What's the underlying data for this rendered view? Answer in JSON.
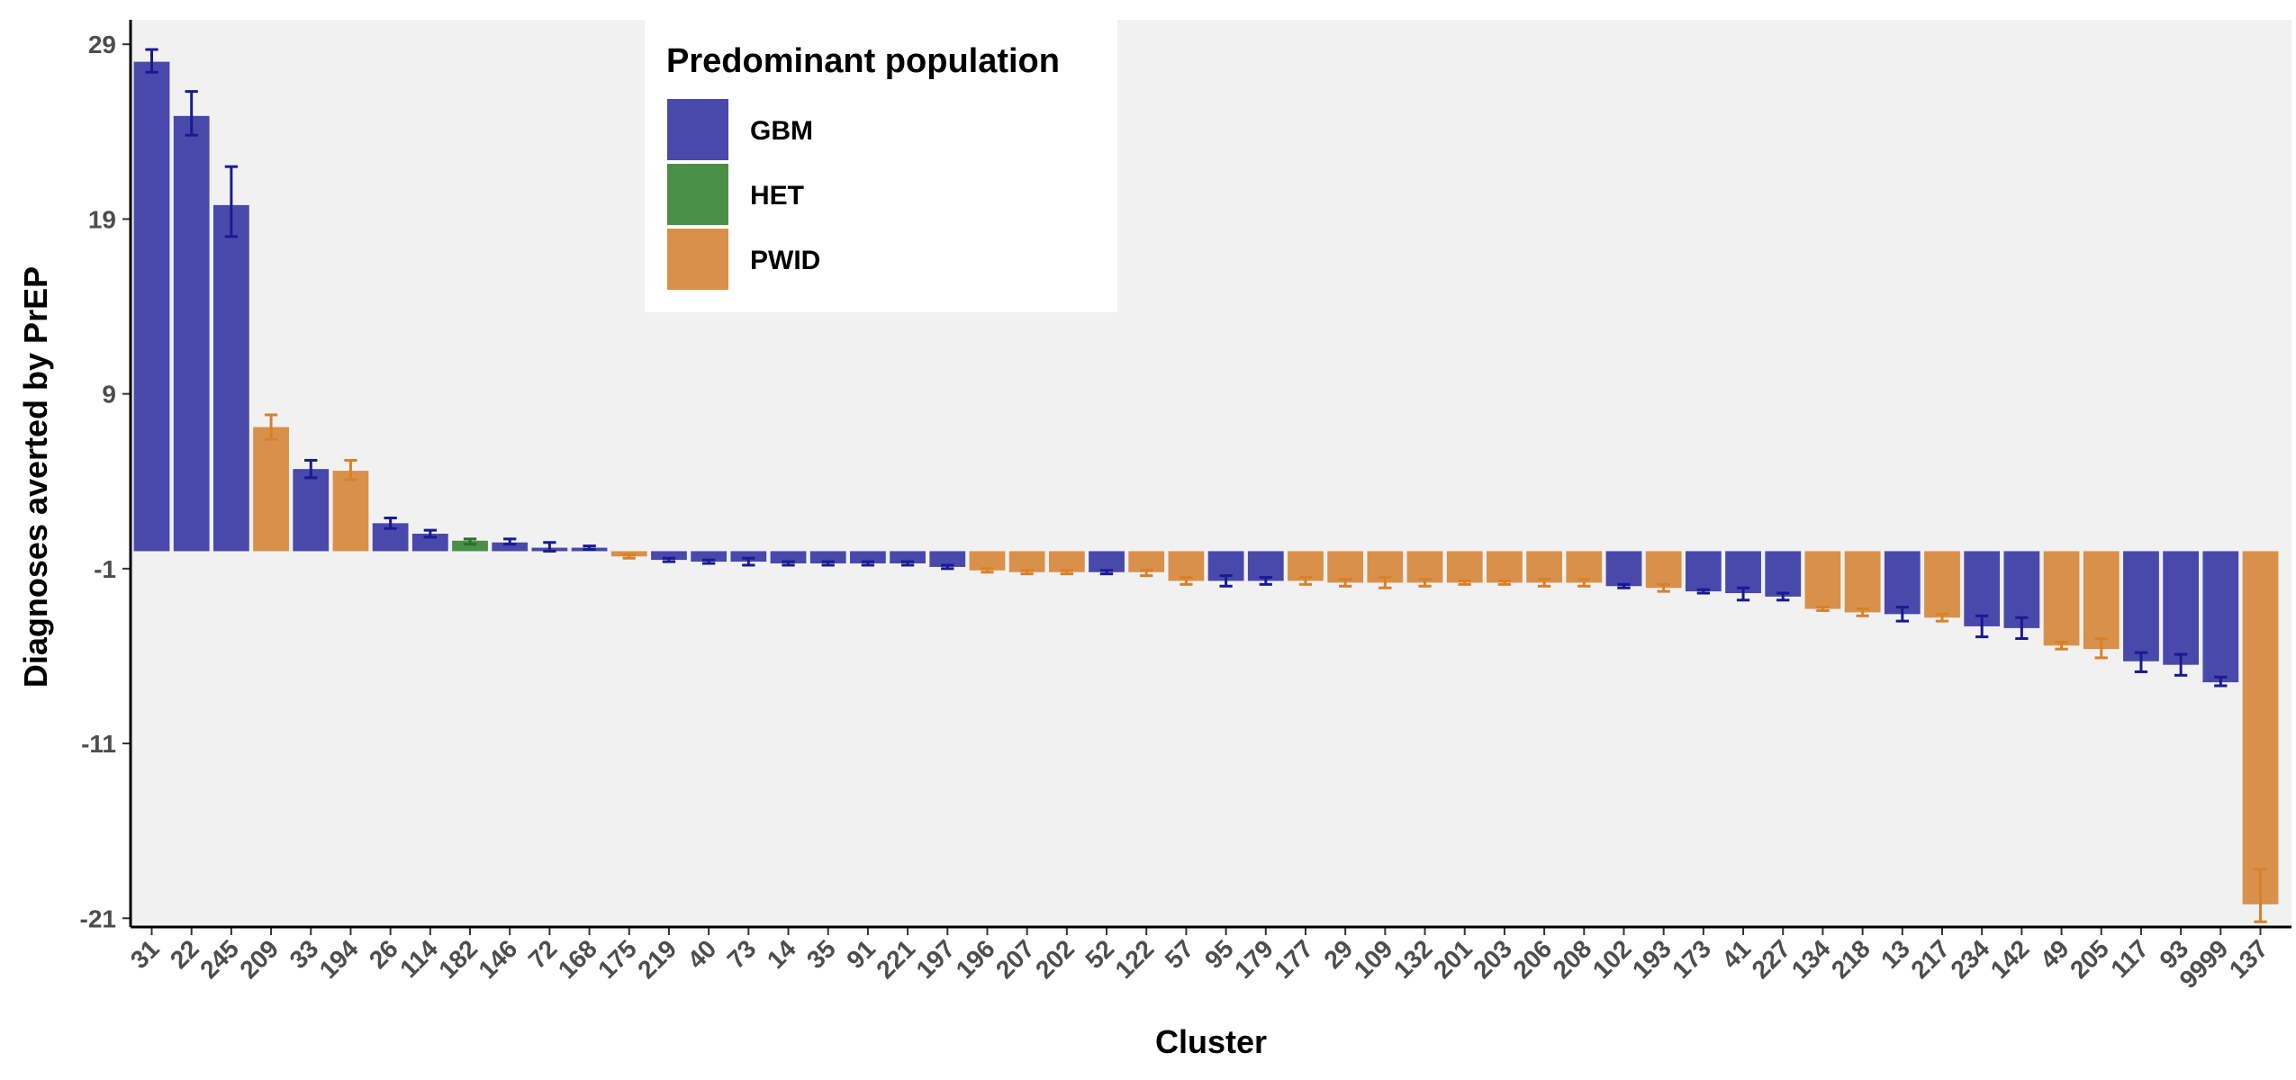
{
  "chart_data": {
    "type": "bar",
    "xlabel": "Cluster",
    "ylabel": "Diagnoses averted by PrEP",
    "ylim": [
      -21.5,
      30.4
    ],
    "yticks": [
      29,
      19,
      9,
      -1,
      -11,
      -21
    ],
    "grid": false,
    "legend": {
      "title": "Predominant population",
      "placement": "top-center",
      "entries": [
        "GBM",
        "HET",
        "PWID"
      ]
    },
    "colors": {
      "GBM": "#4949ab",
      "HET": "#4a8f47",
      "PWID": "#d9904a"
    },
    "error_colors": {
      "GBM": "#1a1a94",
      "HET": "#2e6e2e",
      "PWID": "#d9802a"
    },
    "categories": [
      "31",
      "22",
      "245",
      "209",
      "33",
      "194",
      "26",
      "114",
      "182",
      "146",
      "72",
      "168",
      "175",
      "219",
      "40",
      "73",
      "14",
      "35",
      "91",
      "221",
      "197",
      "196",
      "207",
      "202",
      "52",
      "122",
      "57",
      "95",
      "179",
      "177",
      "29",
      "109",
      "132",
      "201",
      "203",
      "206",
      "208",
      "102",
      "193",
      "173",
      "41",
      "227",
      "134",
      "218",
      "13",
      "217",
      "234",
      "142",
      "49",
      "205",
      "117",
      "93",
      "9999",
      "137"
    ],
    "groups": [
      "GBM",
      "GBM",
      "GBM",
      "PWID",
      "GBM",
      "PWID",
      "GBM",
      "GBM",
      "HET",
      "GBM",
      "GBM",
      "GBM",
      "PWID",
      "GBM",
      "GBM",
      "GBM",
      "GBM",
      "GBM",
      "GBM",
      "GBM",
      "GBM",
      "PWID",
      "PWID",
      "PWID",
      "GBM",
      "PWID",
      "PWID",
      "GBM",
      "GBM",
      "PWID",
      "PWID",
      "PWID",
      "PWID",
      "PWID",
      "PWID",
      "PWID",
      "PWID",
      "GBM",
      "PWID",
      "GBM",
      "GBM",
      "GBM",
      "PWID",
      "PWID",
      "GBM",
      "PWID",
      "GBM",
      "GBM",
      "PWID",
      "PWID",
      "GBM",
      "GBM",
      "GBM",
      "PWID"
    ],
    "values": [
      28.0,
      24.9,
      19.8,
      7.1,
      4.7,
      4.6,
      1.6,
      1.0,
      0.6,
      0.5,
      0.2,
      0.2,
      -0.3,
      -0.5,
      -0.6,
      -0.6,
      -0.7,
      -0.7,
      -0.7,
      -0.7,
      -0.9,
      -1.1,
      -1.2,
      -1.2,
      -1.2,
      -1.2,
      -1.7,
      -1.7,
      -1.7,
      -1.7,
      -1.8,
      -1.8,
      -1.8,
      -1.8,
      -1.8,
      -1.8,
      -1.8,
      -2.0,
      -2.1,
      -2.3,
      -2.4,
      -2.6,
      -3.3,
      -3.5,
      -3.6,
      -3.8,
      -4.3,
      -4.4,
      -5.4,
      -5.6,
      -6.3,
      -6.5,
      -7.5,
      -20.2
    ],
    "err_low": [
      27.4,
      23.8,
      18.0,
      6.4,
      4.2,
      4.1,
      1.3,
      0.8,
      0.4,
      0.4,
      0.0,
      0.1,
      -0.4,
      -0.6,
      -0.7,
      -0.8,
      -0.8,
      -0.8,
      -0.8,
      -0.8,
      -1.0,
      -1.2,
      -1.3,
      -1.3,
      -1.3,
      -1.4,
      -1.9,
      -2.0,
      -1.9,
      -1.9,
      -2.0,
      -2.1,
      -2.0,
      -1.9,
      -1.9,
      -2.0,
      -2.0,
      -2.1,
      -2.3,
      -2.4,
      -2.8,
      -2.8,
      -3.4,
      -3.7,
      -4.0,
      -4.0,
      -4.9,
      -5.0,
      -5.6,
      -6.1,
      -6.9,
      -7.1,
      -7.7,
      -21.2
    ],
    "err_high": [
      28.7,
      26.3,
      22.0,
      7.8,
      5.2,
      5.2,
      1.9,
      1.2,
      0.7,
      0.7,
      0.5,
      0.3,
      -0.2,
      -0.4,
      -0.5,
      -0.4,
      -0.6,
      -0.6,
      -0.6,
      -0.6,
      -0.8,
      -1.0,
      -1.1,
      -1.1,
      -1.1,
      -1.1,
      -1.5,
      -1.4,
      -1.5,
      -1.5,
      -1.6,
      -1.5,
      -1.6,
      -1.7,
      -1.7,
      -1.6,
      -1.6,
      -1.9,
      -1.9,
      -2.2,
      -2.1,
      -2.4,
      -3.2,
      -3.3,
      -3.2,
      -3.6,
      -3.7,
      -3.8,
      -5.2,
      -5.0,
      -5.8,
      -5.9,
      -7.2,
      -18.2
    ]
  }
}
